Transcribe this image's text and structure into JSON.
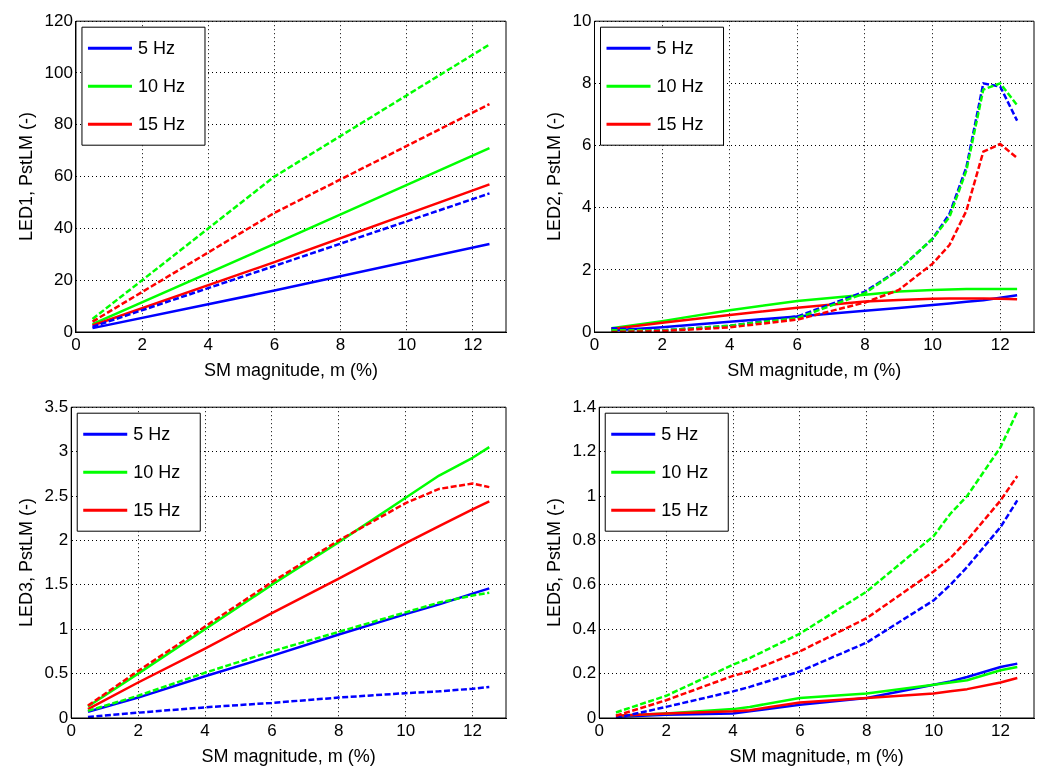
{
  "chart_data": [
    {
      "type": "line",
      "xlabel": "SM magnitude, m (%)",
      "ylabel": "LED1, PstLM (-)",
      "x": [
        0.5,
        6,
        12.5
      ],
      "xlim": [
        0,
        13
      ],
      "xticks": [
        0,
        2,
        4,
        6,
        8,
        10,
        12
      ],
      "ylim": [
        0,
        120
      ],
      "yticks": [
        0,
        20,
        40,
        60,
        80,
        100,
        120
      ],
      "grid": true,
      "legend": "top left",
      "marker": "none",
      "series": [
        {
          "name": "5 Hz",
          "color": "#0000ff",
          "values": [
            1.5,
            16,
            34
          ]
        },
        {
          "name": "10 Hz",
          "color": "#00ff00",
          "values": [
            3,
            34,
            71
          ]
        },
        {
          "name": "15 Hz",
          "color": "#ff0000",
          "values": [
            2.5,
            27,
            57
          ]
        },
        {
          "color": "#0000ff",
          "line_style": "dashed",
          "values": [
            2,
            25.5,
            53.5
          ]
        },
        {
          "color": "#00ff00",
          "line_style": "dashed",
          "values": [
            5,
            60,
            111
          ]
        },
        {
          "color": "#ff0000",
          "line_style": "dashed",
          "values": [
            4,
            46,
            88
          ]
        }
      ]
    },
    {
      "type": "line",
      "xlabel": "SM magnitude, m (%)",
      "ylabel": "LED2, PstLM (-)",
      "x": [
        0.5,
        2,
        4,
        6,
        8,
        9,
        10,
        10.5,
        11,
        11.5,
        12,
        12.5
      ],
      "xlim": [
        0,
        13
      ],
      "xticks": [
        0,
        2,
        4,
        6,
        8,
        10,
        12
      ],
      "ylim": [
        0,
        10
      ],
      "yticks": [
        0,
        2,
        4,
        6,
        8,
        10
      ],
      "grid": true,
      "legend": "top left",
      "marker": "none",
      "series": [
        {
          "name": "5 Hz",
          "color": "#0000ff",
          "values": [
            0.05,
            0.15,
            0.33,
            0.5,
            0.68,
            0.77,
            0.87,
            0.92,
            0.97,
            1.02,
            1.1,
            1.18
          ]
        },
        {
          "name": "10 Hz",
          "color": "#00ff00",
          "values": [
            0.12,
            0.35,
            0.7,
            1.0,
            1.2,
            1.3,
            1.35,
            1.37,
            1.38,
            1.38,
            1.38,
            1.38
          ]
        },
        {
          "name": "15 Hz",
          "color": "#ff0000",
          "values": [
            0.1,
            0.3,
            0.55,
            0.78,
            0.98,
            1.03,
            1.07,
            1.08,
            1.08,
            1.08,
            1.07,
            1.05
          ]
        },
        {
          "color": "#0000ff",
          "line_style": "dashed",
          "values": [
            0.12,
            0.05,
            0.2,
            0.5,
            1.3,
            2,
            3,
            3.8,
            5.3,
            8.0,
            7.9,
            6.8
          ]
        },
        {
          "color": "#00ff00",
          "line_style": "dashed",
          "values": [
            0.06,
            0.05,
            0.2,
            0.45,
            1.25,
            2,
            3,
            3.7,
            5.2,
            7.8,
            8.0,
            7.3
          ]
        },
        {
          "color": "#ff0000",
          "line_style": "dashed",
          "values": [
            0,
            0.03,
            0.15,
            0.4,
            0.95,
            1.35,
            2.2,
            2.8,
            3.9,
            5.8,
            6.05,
            5.6
          ]
        }
      ]
    },
    {
      "type": "line",
      "xlabel": "SM magnitude, m (%)",
      "ylabel": "LED3, PstLM (-)",
      "x": [
        0.5,
        2,
        4,
        6,
        8,
        10,
        11,
        12,
        12.5
      ],
      "xlim": [
        0,
        13
      ],
      "xticks": [
        0,
        2,
        4,
        6,
        8,
        10,
        12
      ],
      "ylim": [
        0,
        3.5
      ],
      "yticks": [
        0,
        0.5,
        1,
        1.5,
        2,
        2.5,
        3,
        3.5
      ],
      "grid": true,
      "legend": "top left",
      "marker": "none",
      "series": [
        {
          "name": "5 Hz",
          "color": "#0000ff",
          "values": [
            0.07,
            0.23,
            0.47,
            0.7,
            0.94,
            1.17,
            1.28,
            1.4,
            1.46
          ]
        },
        {
          "name": "10 Hz",
          "color": "#00ff00",
          "values": [
            0.13,
            0.5,
            1.0,
            1.5,
            1.98,
            2.48,
            2.73,
            2.93,
            3.05
          ]
        },
        {
          "name": "15 Hz",
          "color": "#ff0000",
          "values": [
            0.1,
            0.4,
            0.78,
            1.18,
            1.57,
            1.97,
            2.16,
            2.35,
            2.44
          ]
        },
        {
          "color": "#0000ff",
          "line_style": "dashed",
          "values": [
            0.01,
            0.06,
            0.12,
            0.17,
            0.23,
            0.28,
            0.3,
            0.33,
            0.35
          ]
        },
        {
          "color": "#00ff00",
          "line_style": "dashed",
          "values": [
            0.08,
            0.25,
            0.51,
            0.75,
            0.97,
            1.19,
            1.3,
            1.38,
            1.41
          ]
        },
        {
          "color": "#ff0000",
          "line_style": "dashed",
          "values": [
            0.14,
            0.53,
            1.03,
            1.53,
            2.0,
            2.42,
            2.58,
            2.64,
            2.6
          ]
        }
      ]
    },
    {
      "type": "line",
      "xlabel": "SM magnitude, m (%)",
      "ylabel": "LED5, PstLM (-)",
      "x": [
        0.5,
        2,
        4,
        4.5,
        6,
        8,
        10,
        10.5,
        11,
        12,
        12.5
      ],
      "xlim": [
        0,
        13
      ],
      "xticks": [
        0,
        2,
        4,
        6,
        8,
        10,
        12
      ],
      "ylim": [
        0,
        1.4
      ],
      "yticks": [
        0,
        0.2,
        0.4,
        0.6,
        0.8,
        1,
        1.2,
        1.4
      ],
      "grid": true,
      "legend": "top left",
      "marker": "none",
      "series": [
        {
          "name": "5 Hz",
          "color": "#0000ff",
          "values": [
            0.005,
            0.015,
            0.02,
            0.03,
            0.06,
            0.09,
            0.15,
            0.165,
            0.185,
            0.23,
            0.245
          ]
        },
        {
          "name": "10 Hz",
          "color": "#00ff00",
          "values": [
            0.01,
            0.02,
            0.04,
            0.05,
            0.09,
            0.11,
            0.15,
            0.16,
            0.17,
            0.215,
            0.23
          ]
        },
        {
          "name": "15 Hz",
          "color": "#ff0000",
          "values": [
            0.01,
            0.02,
            0.03,
            0.035,
            0.07,
            0.09,
            0.11,
            0.12,
            0.13,
            0.16,
            0.18
          ]
        },
        {
          "color": "#0000ff",
          "line_style": "dashed",
          "values": [
            0,
            0.05,
            0.12,
            0.14,
            0.21,
            0.34,
            0.53,
            0.6,
            0.68,
            0.86,
            0.98
          ]
        },
        {
          "color": "#00ff00",
          "line_style": "dashed",
          "values": [
            0.025,
            0.1,
            0.24,
            0.27,
            0.38,
            0.57,
            0.82,
            0.92,
            1.0,
            1.22,
            1.38
          ]
        },
        {
          "color": "#ff0000",
          "line_style": "dashed",
          "values": [
            0.01,
            0.08,
            0.19,
            0.21,
            0.3,
            0.45,
            0.66,
            0.72,
            0.8,
            0.98,
            1.09
          ]
        }
      ]
    }
  ]
}
